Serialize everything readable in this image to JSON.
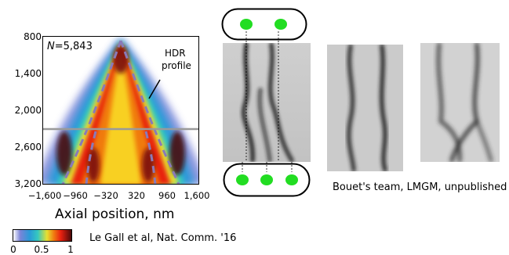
{
  "heatmap": {
    "n_label_prefix": "N",
    "n_label_value": "=5,843",
    "hdr_label_line1": "HDR",
    "hdr_label_line2": "profile",
    "y_ticks": [
      "800",
      "1,400",
      "2,000",
      "2,600",
      "3,200"
    ],
    "x_ticks": [
      "−1,600",
      "−960",
      "−320",
      "320",
      "960",
      "1,600"
    ],
    "x_axis_title": "Axial position, nm"
  },
  "colorbar": {
    "ticks": [
      "0",
      "0.5",
      "1"
    ]
  },
  "credits": {
    "left": "Le Gall et al, Nat. Comm. '16",
    "right": "Bouet's team, LMGM, unpublished"
  },
  "colors": {
    "cell_spot": "#22dd22",
    "dashed_profile": "#8a7ab8",
    "gray_line": "#9a9a9a"
  },
  "icons": [
    "cell-two-foci-icon",
    "cell-three-foci-icon"
  ]
}
